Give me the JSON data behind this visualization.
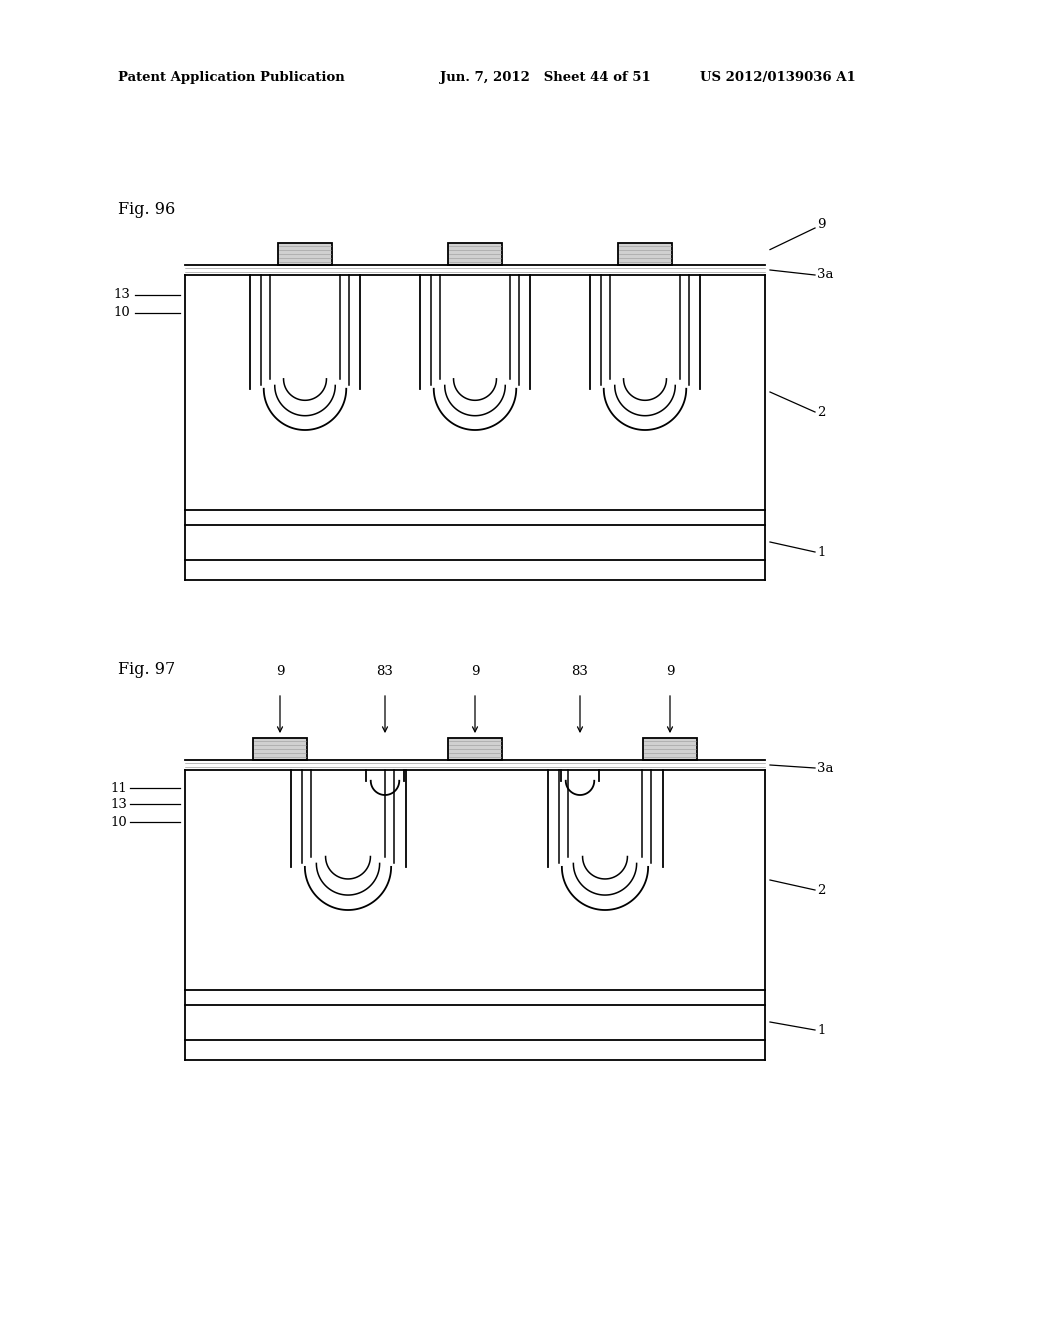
{
  "bg_color": "#ffffff",
  "line_color": "#000000",
  "header_text_left": "Patent Application Publication",
  "header_text_mid": "Jun. 7, 2012   Sheet 44 of 51",
  "header_text_right": "US 2012/0139036 A1",
  "fig96_label": "Fig. 96",
  "fig97_label": "Fig. 97",
  "lw": 1.3,
  "fs": 9.5
}
